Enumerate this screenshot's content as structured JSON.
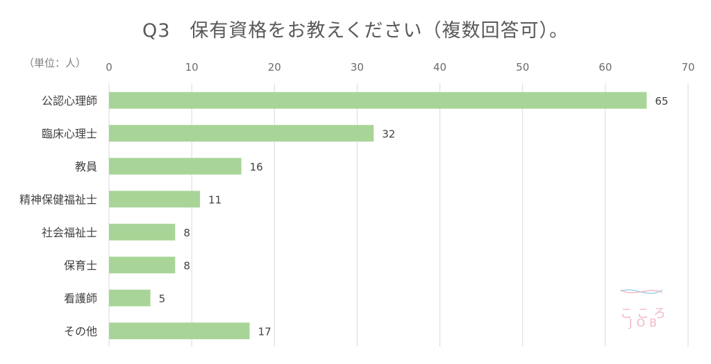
{
  "chart_data": {
    "type": "bar",
    "orientation": "horizontal",
    "title": "Q3　保有資格をお教えください（複数回答可）。",
    "unit": "（単位：人）",
    "categories": [
      "公認心理師",
      "臨床心理士",
      "教員",
      "精神保健福祉士",
      "社会福祉士",
      "保育士",
      "看護師",
      "その他"
    ],
    "values": [
      65,
      32,
      16,
      11,
      8,
      8,
      5,
      17
    ],
    "xlim": [
      0,
      70
    ],
    "xticks": [
      0,
      10,
      20,
      30,
      40,
      50,
      60,
      70
    ],
    "grid": true,
    "bar_color": "#a8d597"
  },
  "watermark": {
    "line1": "こころ",
    "line2": "JOB"
  }
}
